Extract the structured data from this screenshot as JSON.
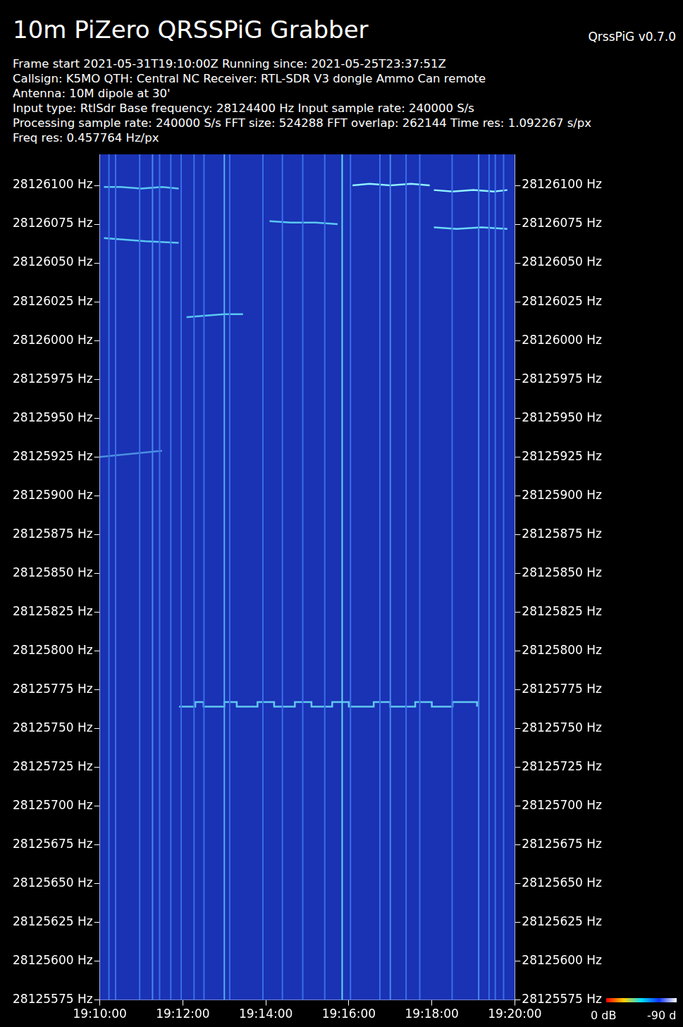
{
  "header": {
    "title": "10m PiZero QRSSPiG Grabber",
    "version": "QrssPiG v0.7.0",
    "lines": [
      "Frame start 2021-05-31T19:10:00Z Running since: 2021-05-25T23:37:51Z",
      "Callsign: K5MO QTH: Central NC Receiver: RTL-SDR V3 dongle Ammo Can remote",
      "Antenna: 10M dipole at 30'",
      "Input type: RtlSdr Base frequency: 28124400 Hz Input sample rate: 240000 S/s",
      "Processing sample rate: 240000 S/s FFT size: 524288 FFT overlap: 262144 Time res: 1.092267 s/px",
      "Freq res: 0.457764 Hz/px"
    ]
  },
  "chart_data": {
    "type": "line",
    "grid": false,
    "xlim": [
      1150,
      1160
    ],
    "xticks": [
      {
        "value": 1150,
        "label": "19:10:00"
      },
      {
        "value": 1152,
        "label": "19:12:00"
      },
      {
        "value": 1154,
        "label": "19:14:00"
      },
      {
        "value": 1156,
        "label": "19:16:00"
      },
      {
        "value": 1158,
        "label": "19:18:00"
      },
      {
        "value": 1160,
        "label": "19:20:00"
      }
    ],
    "ylim": [
      28125575,
      28126120
    ],
    "yticks": [
      {
        "value": 28125575,
        "label": "28125575 Hz"
      },
      {
        "value": 28125600,
        "label": "28125600 Hz"
      },
      {
        "value": 28125625,
        "label": "28125625 Hz"
      },
      {
        "value": 28125650,
        "label": "28125650 Hz"
      },
      {
        "value": 28125675,
        "label": "28125675 Hz"
      },
      {
        "value": 28125700,
        "label": "28125700 Hz"
      },
      {
        "value": 28125725,
        "label": "28125725 Hz"
      },
      {
        "value": 28125750,
        "label": "28125750 Hz"
      },
      {
        "value": 28125775,
        "label": "28125775 Hz"
      },
      {
        "value": 28125800,
        "label": "28125800 Hz"
      },
      {
        "value": 28125825,
        "label": "28125825 Hz"
      },
      {
        "value": 28125850,
        "label": "28125850 Hz"
      },
      {
        "value": 28125875,
        "label": "28125875 Hz"
      },
      {
        "value": 28125900,
        "label": "28125900 Hz"
      },
      {
        "value": 28125925,
        "label": "28125925 Hz"
      },
      {
        "value": 28125950,
        "label": "28125950 Hz"
      },
      {
        "value": 28125975,
        "label": "28125975 Hz"
      },
      {
        "value": 28126000,
        "label": "28126000 Hz"
      },
      {
        "value": 28126025,
        "label": "28126025 Hz"
      },
      {
        "value": 28126050,
        "label": "28126050 Hz"
      },
      {
        "value": 28126075,
        "label": "28126075 Hz"
      },
      {
        "value": 28126100,
        "label": "28126100 Hz"
      }
    ],
    "vertical_lines": [
      {
        "x": 1150.22,
        "color": "#3a6ee8"
      },
      {
        "x": 1150.38,
        "color": "#3a6ee8"
      },
      {
        "x": 1150.96,
        "color": "#3a6ee8"
      },
      {
        "x": 1151.27,
        "color": "#4a86ee"
      },
      {
        "x": 1151.44,
        "color": "#3a6ee8"
      },
      {
        "x": 1151.71,
        "color": "#3a6ee8"
      },
      {
        "x": 1151.96,
        "color": "#3a6ee8"
      },
      {
        "x": 1152.27,
        "color": "#3a6ee8"
      },
      {
        "x": 1152.51,
        "color": "#3a6ee8"
      },
      {
        "x": 1153.0,
        "color": "#50b0f0"
      },
      {
        "x": 1153.13,
        "color": "#3a6ee8"
      },
      {
        "x": 1153.93,
        "color": "#3a6ee8"
      },
      {
        "x": 1154.4,
        "color": "#3a6ee8"
      },
      {
        "x": 1154.89,
        "color": "#3a6ee8"
      },
      {
        "x": 1155.42,
        "color": "#3a6ee8"
      },
      {
        "x": 1155.84,
        "color": "#60d8f0"
      },
      {
        "x": 1156.04,
        "color": "#3a6ee8"
      },
      {
        "x": 1156.75,
        "color": "#3a6ee8"
      },
      {
        "x": 1157.0,
        "color": "#4a86ee"
      },
      {
        "x": 1157.38,
        "color": "#3a6ee8"
      },
      {
        "x": 1157.71,
        "color": "#3a6ee8"
      },
      {
        "x": 1158.49,
        "color": "#3a6ee8"
      },
      {
        "x": 1159.13,
        "color": "#4a86ee"
      },
      {
        "x": 1159.38,
        "color": "#3a6ee8"
      },
      {
        "x": 1159.53,
        "color": "#3a6ee8"
      },
      {
        "x": 1159.73,
        "color": "#3a6ee8"
      }
    ],
    "series": [
      {
        "color": "#5ac8f0",
        "line_style": "solid",
        "x": [
          1150.1,
          1150.5,
          1151.0,
          1151.5,
          1151.9
        ],
        "values": [
          28126099,
          28126099,
          28126098,
          28126099,
          28126098
        ]
      },
      {
        "color": "#8ff0ff",
        "line_style": "solid",
        "x": [
          1156.09,
          1156.5,
          1157.0,
          1157.5,
          1157.95
        ],
        "values": [
          28126100,
          28126101,
          28126100,
          28126101,
          28126100
        ]
      },
      {
        "color": "#8ff0ff",
        "line_style": "solid",
        "x": [
          1158.05,
          1158.5,
          1159.0,
          1159.5,
          1159.82
        ],
        "values": [
          28126097,
          28126096,
          28126097,
          28126096,
          28126097
        ]
      },
      {
        "color": "#5ac8f0",
        "line_style": "solid",
        "x": [
          1150.1,
          1150.6,
          1151.1,
          1151.9
        ],
        "values": [
          28126066,
          28126065,
          28126064,
          28126063
        ]
      },
      {
        "color": "#5ac8f0",
        "line_style": "solid",
        "x": [
          1154.09,
          1154.6,
          1155.2,
          1155.73
        ],
        "values": [
          28126077,
          28126076,
          28126076,
          28126075
        ]
      },
      {
        "color": "#6ad8f8",
        "line_style": "solid",
        "x": [
          1158.05,
          1158.6,
          1159.2,
          1159.82
        ],
        "values": [
          28126073,
          28126072,
          28126073,
          28126072
        ]
      },
      {
        "color": "#5ac8f0",
        "line_style": "solid",
        "x": [
          1152.09,
          1152.5,
          1153.0,
          1153.45
        ],
        "values": [
          28126015,
          28126016,
          28126017,
          28126017
        ]
      },
      {
        "color": "#4a90e0",
        "line_style": "solid",
        "x": [
          1150.0,
          1151.5
        ],
        "values": [
          28125925,
          28125929
        ]
      },
      {
        "color": "#60c8f0",
        "line_style": "stepped",
        "x": [
          1151.91,
          1152.3,
          1152.5,
          1153.0,
          1153.3,
          1153.8,
          1154.2,
          1154.7,
          1155.1,
          1155.6,
          1156.0,
          1156.6,
          1157.0,
          1157.6,
          1158.0,
          1158.5,
          1159.09
        ],
        "values": [
          28125764,
          28125767,
          28125764,
          28125767,
          28125764,
          28125767,
          28125764,
          28125767,
          28125764,
          28125767,
          28125764,
          28125767,
          28125764,
          28125767,
          28125764,
          28125767,
          28125764
        ]
      }
    ],
    "colorbar": {
      "range": [
        0,
        -90
      ],
      "ticks": [
        {
          "value": 0,
          "label": "0 dB"
        },
        {
          "value": -90,
          "label": "-90 d"
        }
      ]
    }
  }
}
